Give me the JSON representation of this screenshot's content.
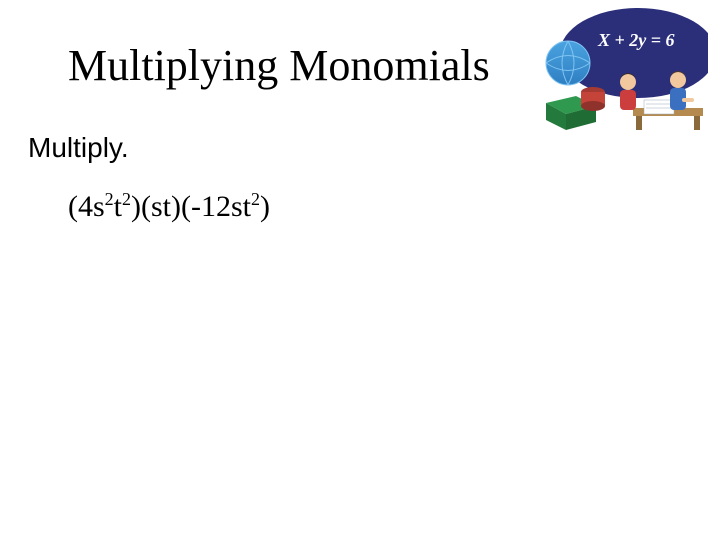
{
  "title": "Multiplying Monomials",
  "instruction": "Multiply.",
  "expression": {
    "p1": "(4s",
    "e1": "2",
    "p2": "t",
    "e2": "2",
    "p3": ")(st)(-12st",
    "e3": "2",
    "p4": ")"
  },
  "art": {
    "bg": "#2b2f7a",
    "eq_color": "#ffffff",
    "eq_text": "X + 2y = 6",
    "globe_top": "#4aa3e0",
    "globe_bottom": "#2f7fc2",
    "globe_grid": "#7fc4f2",
    "green_box": "#2f9a4f",
    "red_cyl": "#c4443a",
    "desk": "#b58a4f",
    "person1_shirt": "#cc3d3d",
    "person1_skin": "#f2c89e",
    "person1_hair": "#3a2a1a",
    "person2_shirt": "#3b6fbf",
    "person2_skin": "#f2c89e",
    "person2_hair": "#5a3a1e",
    "paper": "#ffffff",
    "paper_rule": "#9ab"
  }
}
